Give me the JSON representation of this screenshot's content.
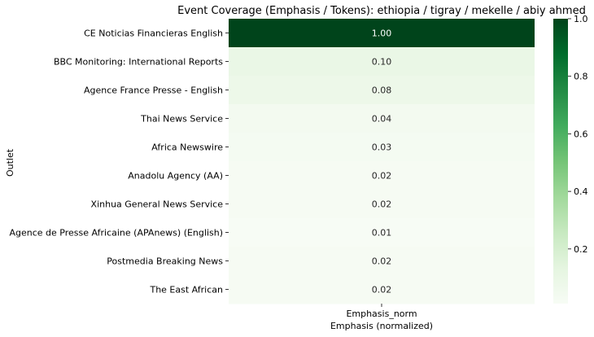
{
  "chart_data": {
    "type": "heatmap",
    "title": "Event Coverage (Emphasis / Tokens): ethiopia / tigray / mekelle / abiy ahmed",
    "xlabel": "Emphasis (normalized)",
    "ylabel": "Outlet",
    "columns": [
      "Emphasis_norm"
    ],
    "rows": [
      "CE Noticias Financieras English",
      "BBC Monitoring: International Reports",
      "Agence France Presse - English",
      "Thai News Service",
      "Africa Newswire",
      "Anadolu Agency (AA)",
      "Xinhua General News Service",
      "Agence de Presse Africaine (APAnews) (English)",
      "Postmedia Breaking News",
      "The East African"
    ],
    "values": [
      1.0,
      0.1,
      0.08,
      0.04,
      0.03,
      0.02,
      0.02,
      0.01,
      0.02,
      0.02
    ],
    "value_labels": [
      "1.00",
      "0.10",
      "0.08",
      "0.04",
      "0.03",
      "0.02",
      "0.02",
      "0.01",
      "0.02",
      "0.02"
    ],
    "colorbar": {
      "range": [
        0.01,
        1.0
      ],
      "ticks": [
        0.2,
        0.4,
        0.6,
        0.8,
        1.0
      ],
      "tick_labels": [
        "0.2",
        "0.4",
        "0.6",
        "0.8",
        "1.0"
      ],
      "colormap": "Greens"
    },
    "grid": false,
    "legend": "colorbar-right"
  }
}
